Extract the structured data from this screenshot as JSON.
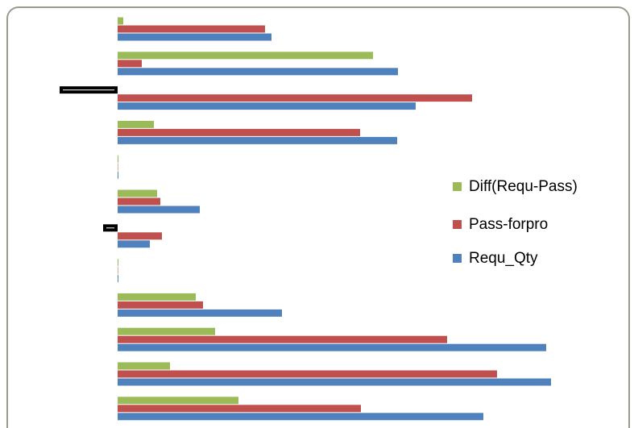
{
  "chart_data": {
    "type": "hbar",
    "categories": [
      null,
      null,
      null,
      null,
      null,
      null,
      null,
      null,
      null,
      null,
      null,
      null
    ],
    "series": [
      {
        "name": "Diff(Requ-Pass)",
        "color": "#9bbb59",
        "values": [
          7,
          317,
          -72,
          45,
          1,
          49,
          -18,
          1,
          97,
          121,
          65,
          150
        ]
      },
      {
        "name": "Pass-forpro",
        "color": "#c0504d",
        "values": [
          183,
          30,
          440,
          301,
          0,
          53,
          55,
          0,
          106,
          409,
          471,
          302
        ]
      },
      {
        "name": "Requ_Qty",
        "color": "#4f81bd",
        "values": [
          191,
          348,
          370,
          347,
          1,
          102,
          40,
          1,
          204,
          532,
          538,
          454
        ]
      }
    ],
    "xlim": [
      -126,
      560
    ],
    "negative_fill": "#ffffff",
    "negative_stroke": "#000000"
  }
}
